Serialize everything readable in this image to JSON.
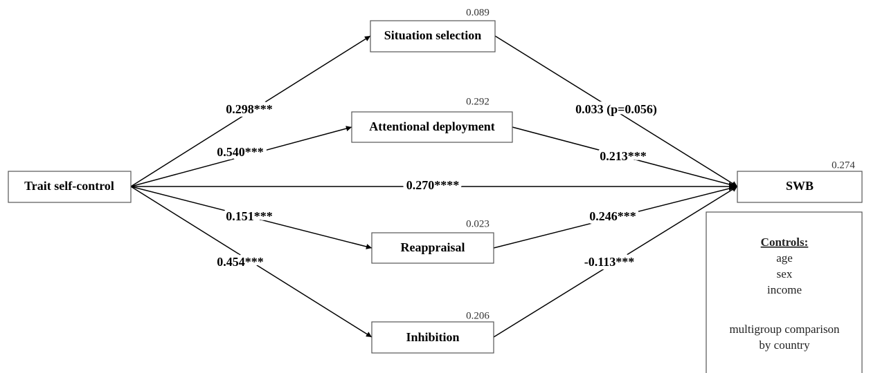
{
  "nodes": [
    {
      "label": "Trait self-control"
    },
    {
      "label": "Situation selection",
      "r2": "0.089"
    },
    {
      "label": "Attentional deployment",
      "r2": "0.292"
    },
    {
      "label": "Reappraisal",
      "r2": "0.023"
    },
    {
      "label": "Inhibition",
      "r2": "0.206"
    },
    {
      "label": "SWB",
      "r2": "0.274"
    }
  ],
  "edges": [
    {
      "label": "0.298***"
    },
    {
      "label": "0.540***"
    },
    {
      "label": "0.270****"
    },
    {
      "label": "0.151***"
    },
    {
      "label": "0.454***"
    },
    {
      "label": "0.033 (p=0.056)"
    },
    {
      "label": "0.213***"
    },
    {
      "label": "0.246***"
    },
    {
      "label": "-0.113***"
    }
  ],
  "controls": {
    "title": "Controls:",
    "items": [
      "age",
      "sex",
      "income"
    ],
    "note": [
      "multigroup comparison",
      "by country"
    ]
  }
}
